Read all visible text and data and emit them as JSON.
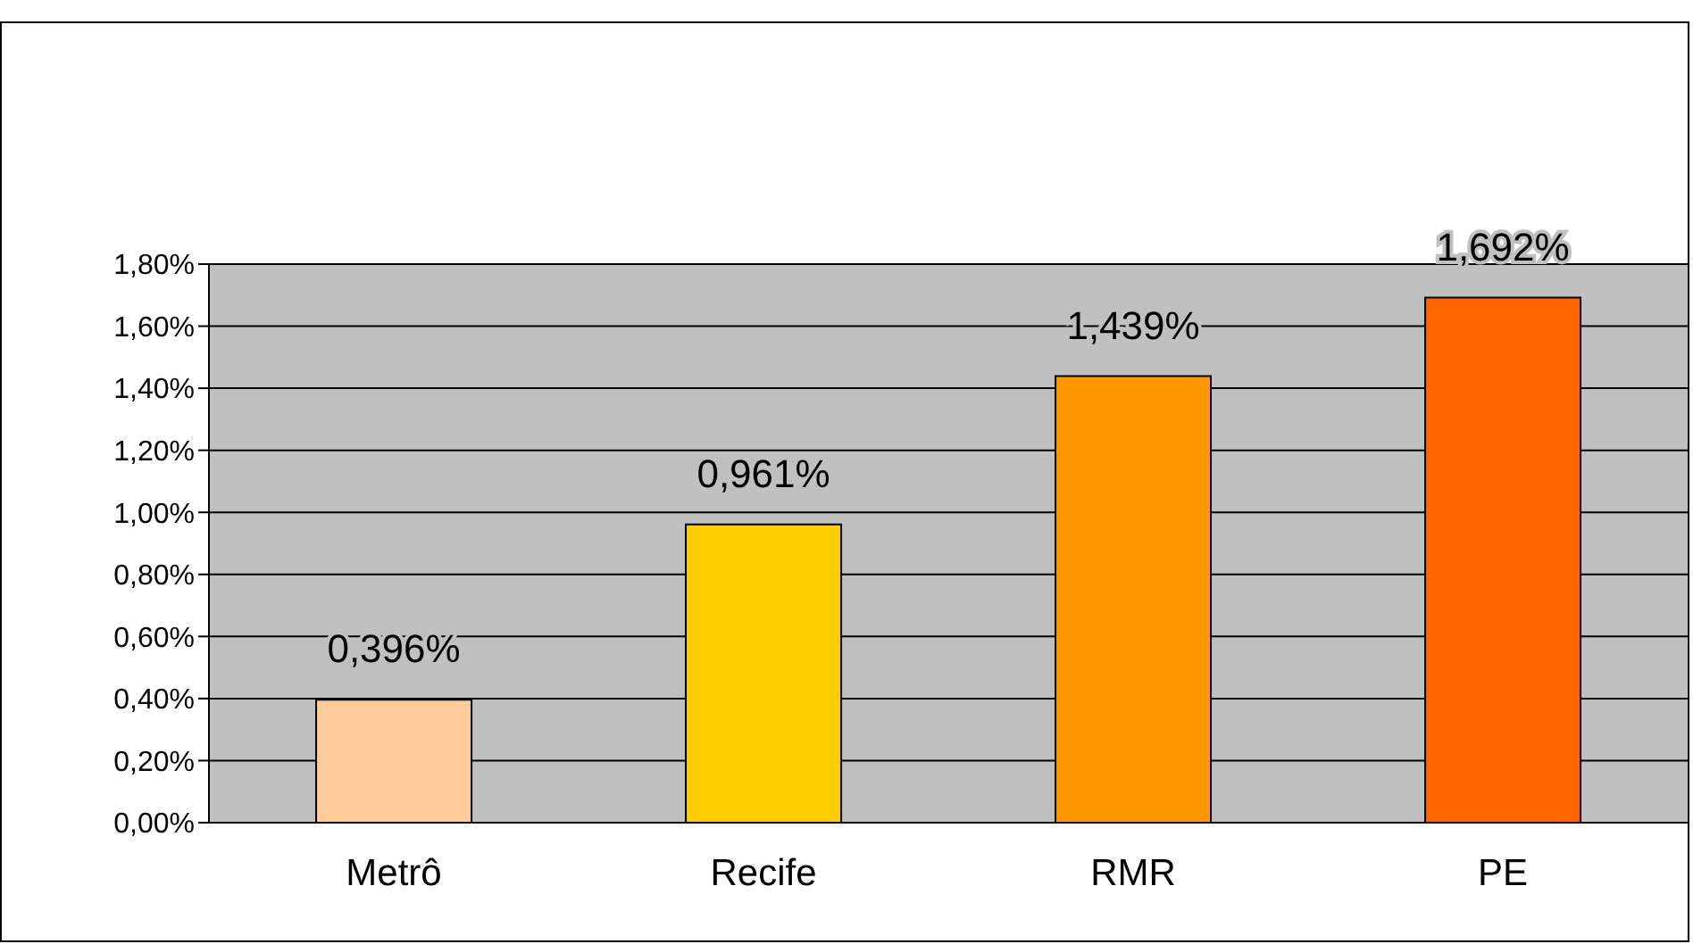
{
  "chart_data": {
    "type": "bar",
    "categories": [
      "Metrô",
      "Recife",
      "RMR",
      "PE"
    ],
    "values": [
      0.396,
      0.961,
      1.439,
      1.692
    ],
    "colors": [
      "#ffcc99",
      "#ffcc00",
      "#ff9900",
      "#ff6600"
    ],
    "value_labels": [
      "0,396%",
      "0,961%",
      "1,439%",
      "1,692%"
    ],
    "ylim": [
      0,
      1.8
    ],
    "yticks": [
      {
        "value": 0,
        "label": "0,00%"
      },
      {
        "value": 0.2,
        "label": "0,20%"
      },
      {
        "value": 0.4,
        "label": "0,40%"
      },
      {
        "value": 0.6,
        "label": "0,60%"
      },
      {
        "value": 0.8,
        "label": "0,80%"
      },
      {
        "value": 1,
        "label": "1,00%"
      },
      {
        "value": 1.2,
        "label": "1,20%"
      },
      {
        "value": 1.4,
        "label": "1,40%"
      },
      {
        "value": 1.6,
        "label": "1,60%"
      },
      {
        "value": 1.8,
        "label": "1,80%"
      }
    ],
    "grid": "y",
    "legend": false
  }
}
